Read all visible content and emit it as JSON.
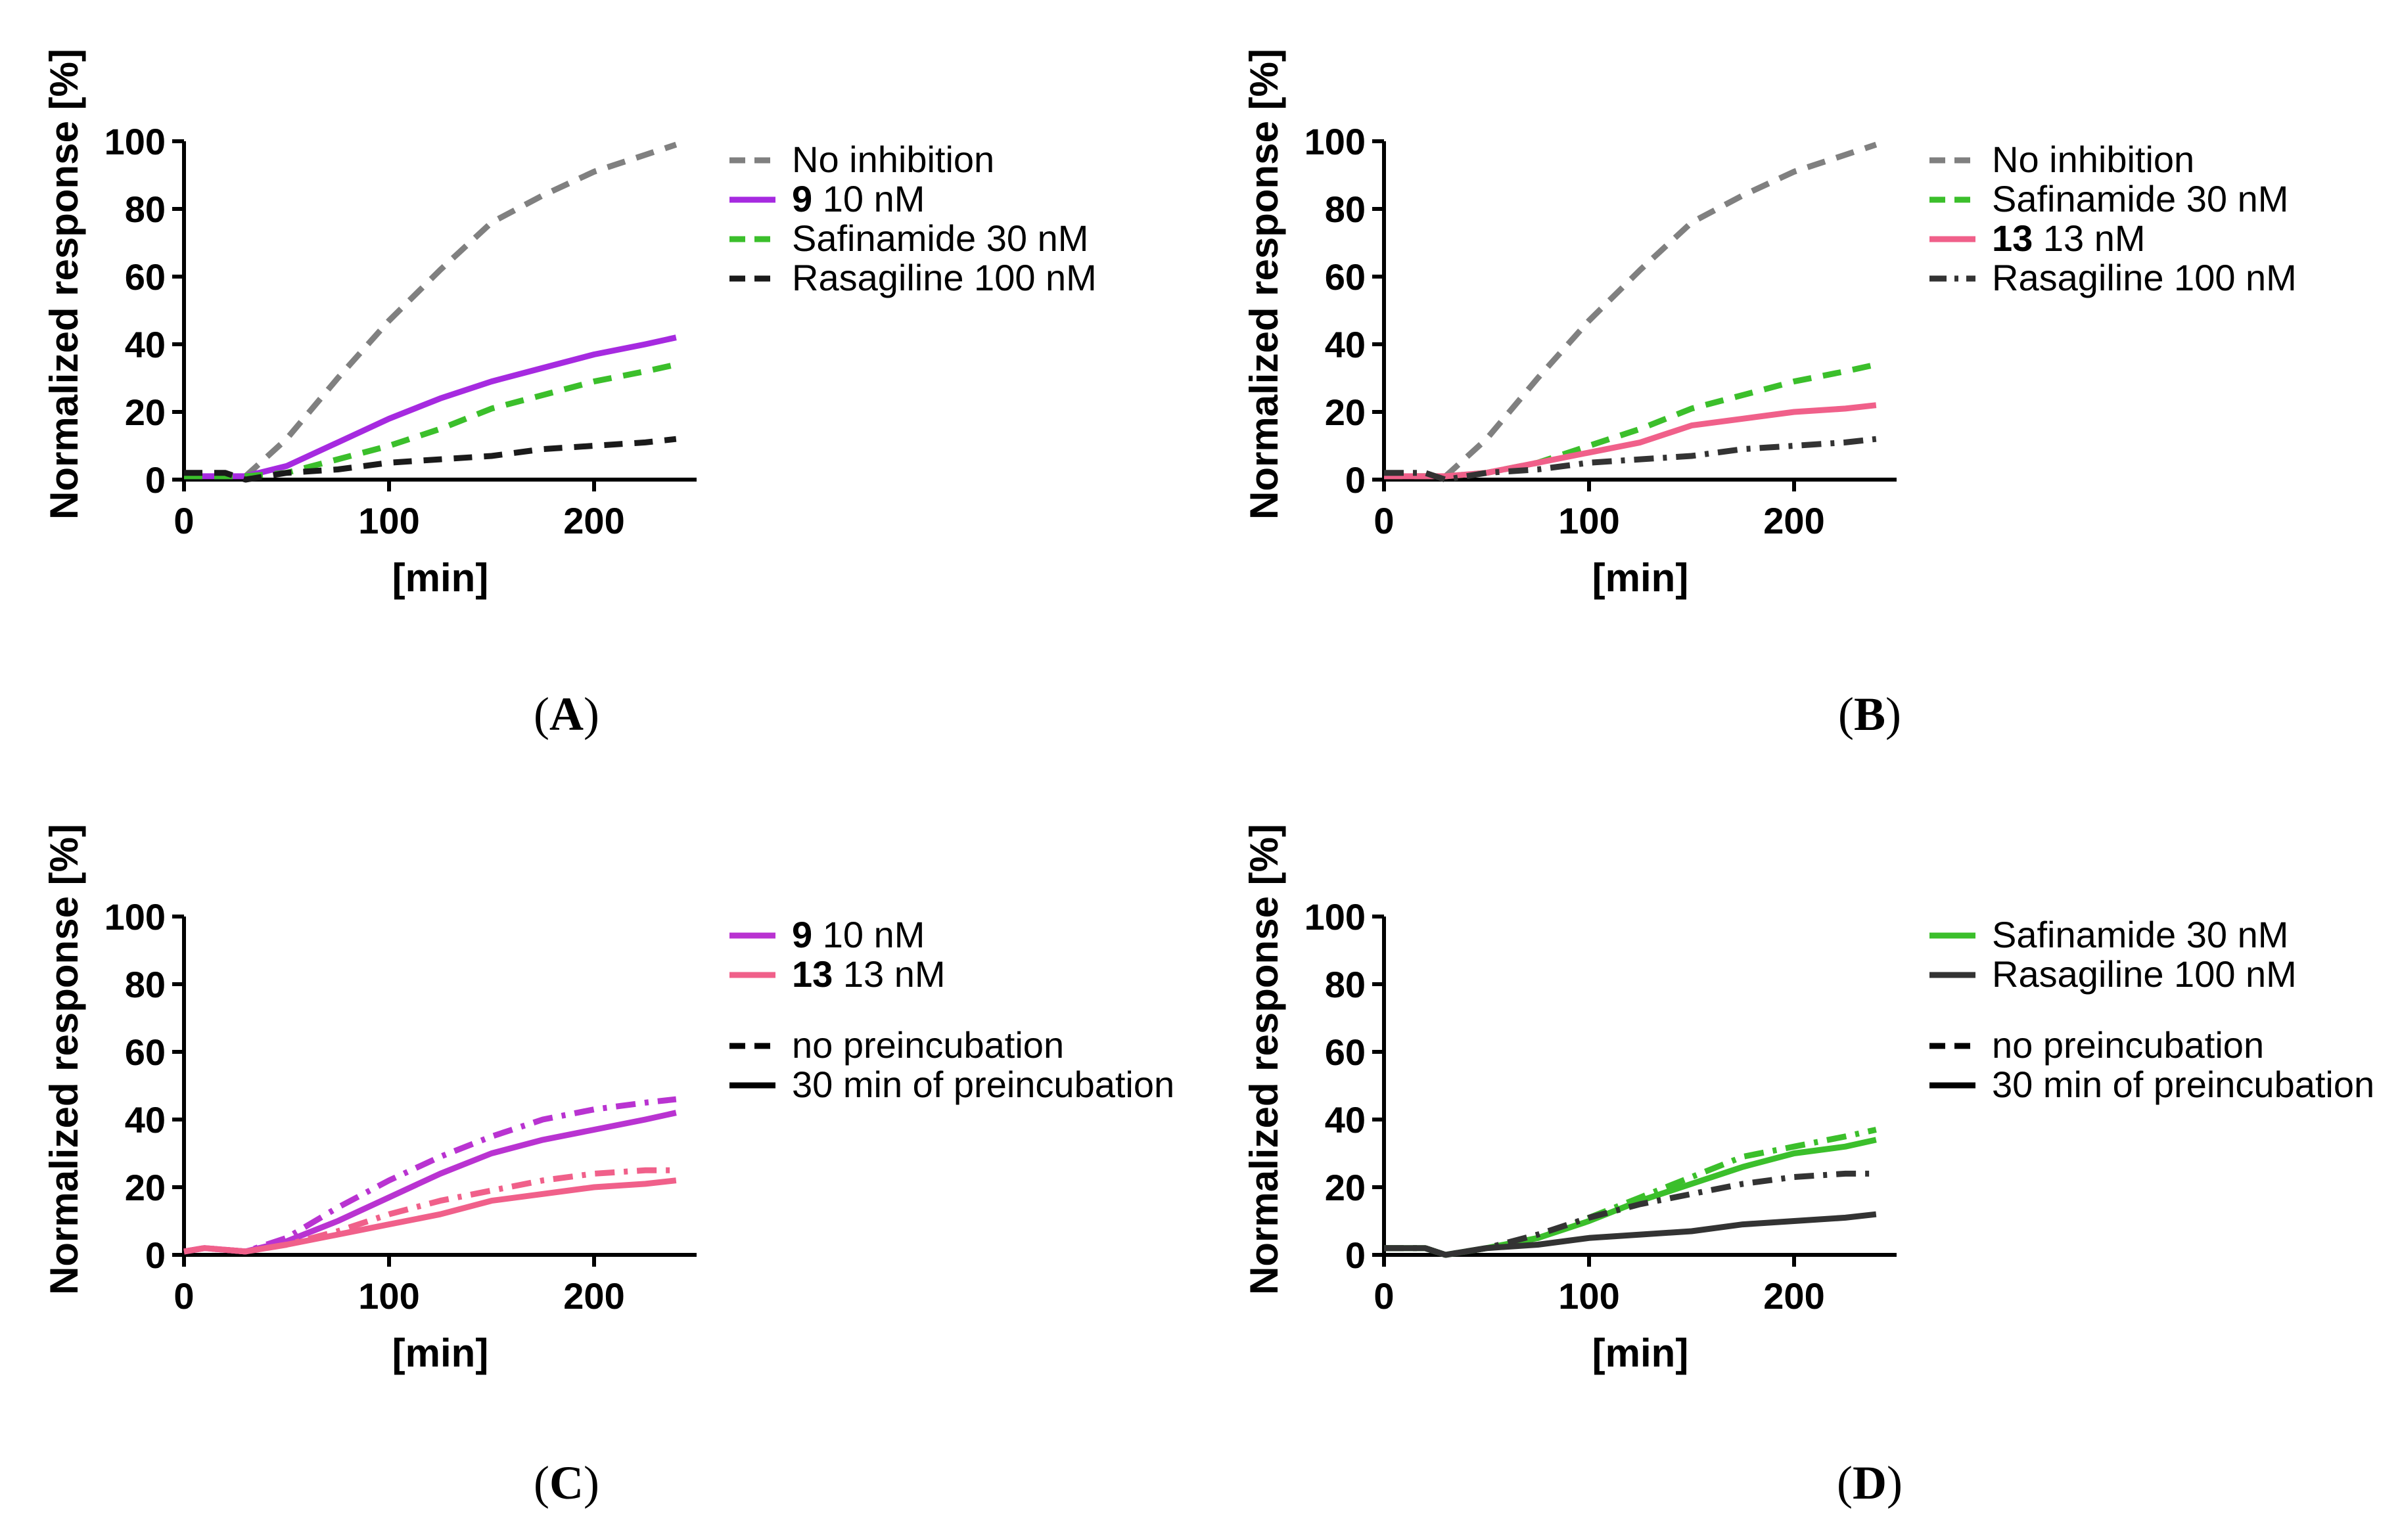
{
  "chart_data": [
    {
      "panel": "A",
      "type": "line",
      "xlabel": "[min]",
      "ylabel": "Normalized response [%]",
      "xlim": [
        0,
        250
      ],
      "ylim": [
        0,
        100
      ],
      "xticks": [
        "0",
        "100",
        "200"
      ],
      "yticks": [
        "0",
        "20",
        "40",
        "60",
        "80",
        "100"
      ],
      "series": [
        {
          "name": "No inhibition",
          "name_bold": "",
          "color": "#808080",
          "style": "dashed",
          "x": [
            0,
            30,
            50,
            75,
            100,
            125,
            150,
            175,
            200,
            225,
            240
          ],
          "values": [
            1,
            1,
            12,
            30,
            47,
            62,
            76,
            84,
            91,
            96,
            99
          ]
        },
        {
          "name": "10 nM",
          "name_bold": "9",
          "color": "#a62ae0",
          "style": "solid",
          "x": [
            0,
            30,
            50,
            75,
            100,
            125,
            150,
            175,
            200,
            225,
            240
          ],
          "values": [
            1,
            1,
            4,
            11,
            18,
            24,
            29,
            33,
            37,
            40,
            42
          ]
        },
        {
          "name": "Safinamide 30 nM",
          "name_bold": "",
          "color": "#3bbf2b",
          "style": "dashed",
          "x": [
            0,
            30,
            50,
            75,
            100,
            125,
            150,
            175,
            200,
            225,
            240
          ],
          "values": [
            1,
            1,
            2,
            6,
            10,
            15,
            21,
            25,
            29,
            32,
            34
          ]
        },
        {
          "name": "Rasagiline 100 nM",
          "name_bold": "",
          "color": "#1a1a1a",
          "style": "dashed",
          "x": [
            0,
            10,
            20,
            30,
            50,
            75,
            100,
            125,
            150,
            175,
            200,
            225,
            240
          ],
          "values": [
            2,
            2,
            2,
            0,
            2,
            3,
            5,
            6,
            7,
            9,
            10,
            11,
            12
          ]
        }
      ]
    },
    {
      "panel": "B",
      "type": "line",
      "xlabel": "[min]",
      "ylabel": "Normalized response [%]",
      "xlim": [
        0,
        250
      ],
      "ylim": [
        0,
        100
      ],
      "xticks": [
        "0",
        "100",
        "200"
      ],
      "yticks": [
        "0",
        "20",
        "40",
        "60",
        "80",
        "100"
      ],
      "series": [
        {
          "name": "No inhibition",
          "name_bold": "",
          "color": "#808080",
          "style": "dashed",
          "x": [
            0,
            30,
            50,
            75,
            100,
            125,
            150,
            175,
            200,
            225,
            240
          ],
          "values": [
            1,
            1,
            12,
            30,
            47,
            62,
            76,
            84,
            91,
            96,
            99
          ]
        },
        {
          "name": "Safinamide 30 nM",
          "name_bold": "",
          "color": "#3bbf2b",
          "style": "dashed",
          "x": [
            0,
            30,
            50,
            75,
            100,
            125,
            150,
            175,
            200,
            225,
            240
          ],
          "values": [
            1,
            1,
            2,
            5,
            10,
            15,
            21,
            25,
            29,
            32,
            34
          ]
        },
        {
          "name": "13 nM",
          "name_bold": "13",
          "color": "#f0608a",
          "style": "solid",
          "x": [
            0,
            30,
            50,
            75,
            100,
            125,
            150,
            175,
            200,
            225,
            240
          ],
          "values": [
            1,
            1,
            2,
            5,
            8,
            11,
            16,
            18,
            20,
            21,
            22
          ]
        },
        {
          "name": "Rasagiline 100 nM",
          "name_bold": "",
          "color": "#333333",
          "style": "dashdot",
          "x": [
            0,
            10,
            20,
            30,
            50,
            75,
            100,
            125,
            150,
            175,
            200,
            225,
            240
          ],
          "values": [
            2,
            2,
            2,
            0,
            2,
            3,
            5,
            6,
            7,
            9,
            10,
            11,
            12
          ]
        }
      ]
    },
    {
      "panel": "C",
      "type": "line",
      "xlabel": "[min]",
      "ylabel": "Normalized response [%]",
      "xlim": [
        0,
        250
      ],
      "ylim": [
        0,
        100
      ],
      "xticks": [
        "0",
        "100",
        "200"
      ],
      "yticks": [
        "0",
        "20",
        "40",
        "60",
        "80",
        "100"
      ],
      "series": [
        {
          "name": "10 nM no preincubation",
          "name_bold": "",
          "color": "#b933d1",
          "style": "dashdot",
          "x": [
            0,
            10,
            30,
            50,
            75,
            100,
            125,
            150,
            175,
            200,
            225,
            240
          ],
          "values": [
            1,
            2,
            1,
            5,
            14,
            22,
            29,
            35,
            40,
            43,
            45,
            46
          ]
        },
        {
          "name": "10 nM 30 min of preincubation",
          "name_bold": "",
          "color": "#b933d1",
          "style": "solid",
          "x": [
            0,
            10,
            30,
            50,
            75,
            100,
            125,
            150,
            175,
            200,
            225,
            240
          ],
          "values": [
            1,
            2,
            1,
            4,
            10,
            17,
            24,
            30,
            34,
            37,
            40,
            42
          ]
        },
        {
          "name": "13 nM no preincubation",
          "name_bold": "",
          "color": "#f0608a",
          "style": "dashdot",
          "x": [
            0,
            10,
            30,
            50,
            75,
            100,
            125,
            150,
            175,
            200,
            225,
            240
          ],
          "values": [
            1,
            2,
            1,
            3,
            7,
            12,
            16,
            19,
            22,
            24,
            25,
            25
          ]
        },
        {
          "name": "13 nM 30 min of preincubation",
          "name_bold": "",
          "color": "#f0608a",
          "style": "solid",
          "x": [
            0,
            10,
            30,
            50,
            75,
            100,
            125,
            150,
            175,
            200,
            225,
            240
          ],
          "values": [
            1,
            2,
            1,
            3,
            6,
            9,
            12,
            16,
            18,
            20,
            21,
            22
          ]
        }
      ],
      "legend": [
        {
          "label": "10 nM",
          "bold": "9",
          "color": "#b933d1",
          "style": "solid"
        },
        {
          "label": "13 nM",
          "bold": "13",
          "color": "#f0608a",
          "style": "solid"
        },
        {
          "label": "no preincubation",
          "bold": "",
          "color": "#000000",
          "style": "dashed"
        },
        {
          "label": "30 min of preincubation",
          "bold": "",
          "color": "#000000",
          "style": "solid"
        }
      ]
    },
    {
      "panel": "D",
      "type": "line",
      "xlabel": "[min]",
      "ylabel": "Normalized response [%]",
      "xlim": [
        0,
        250
      ],
      "ylim": [
        0,
        100
      ],
      "xticks": [
        "0",
        "100",
        "200"
      ],
      "yticks": [
        "0",
        "20",
        "40",
        "60",
        "80",
        "100"
      ],
      "series": [
        {
          "name": "Safinamide 30 nM no preincubation",
          "name_bold": "",
          "color": "#3bbf2b",
          "style": "dashdot",
          "x": [
            0,
            10,
            20,
            30,
            50,
            75,
            100,
            125,
            150,
            175,
            200,
            225,
            240
          ],
          "values": [
            2,
            2,
            2,
            0,
            2,
            5,
            11,
            17,
            23,
            29,
            32,
            35,
            37
          ]
        },
        {
          "name": "Safinamide 30 nM 30 min of preincubation",
          "name_bold": "",
          "color": "#3bbf2b",
          "style": "solid",
          "x": [
            0,
            10,
            20,
            30,
            50,
            75,
            100,
            125,
            150,
            175,
            200,
            225,
            240
          ],
          "values": [
            2,
            2,
            2,
            0,
            2,
            5,
            10,
            16,
            21,
            26,
            30,
            32,
            34
          ]
        },
        {
          "name": "Rasagiline 100 nM no preincubation",
          "name_bold": "",
          "color": "#333333",
          "style": "dashdot",
          "x": [
            0,
            10,
            20,
            30,
            50,
            75,
            100,
            125,
            150,
            175,
            200,
            225,
            240
          ],
          "values": [
            2,
            2,
            2,
            0,
            2,
            6,
            11,
            15,
            18,
            21,
            23,
            24,
            24
          ]
        },
        {
          "name": "Rasagiline 100 nM 30 min of preincubation",
          "name_bold": "",
          "color": "#333333",
          "style": "solid",
          "x": [
            0,
            10,
            20,
            30,
            50,
            75,
            100,
            125,
            150,
            175,
            200,
            225,
            240
          ],
          "values": [
            2,
            2,
            2,
            0,
            2,
            3,
            5,
            6,
            7,
            9,
            10,
            11,
            12
          ]
        }
      ],
      "legend": [
        {
          "label": "Safinamide 30 nM",
          "bold": "",
          "color": "#3bbf2b",
          "style": "solid"
        },
        {
          "label": "Rasagiline 100 nM",
          "bold": "",
          "color": "#333333",
          "style": "solid"
        },
        {
          "label": "no preincubation",
          "bold": "",
          "color": "#000000",
          "style": "dashed"
        },
        {
          "label": "30 min of preincubation",
          "bold": "",
          "color": "#000000",
          "style": "solid"
        }
      ]
    }
  ],
  "captions": {
    "a": "A",
    "b": "B",
    "c": "C",
    "d": "D"
  }
}
